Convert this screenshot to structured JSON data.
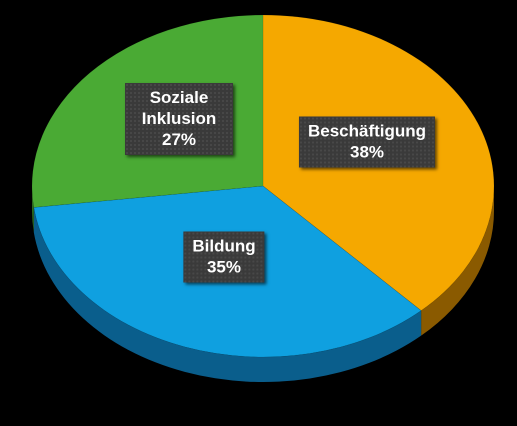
{
  "chart_data": {
    "type": "pie",
    "title": "",
    "slices": [
      {
        "label": "Beschäftigung",
        "value": 38,
        "value_label": "38%",
        "color": "#F5A800",
        "side_color": "#8A5A00"
      },
      {
        "label": "Bildung",
        "value": 35,
        "value_label": "35%",
        "color": "#0FA0E0",
        "side_color": "#0A5E8C"
      },
      {
        "label": "Soziale Inklusion",
        "value": 27,
        "value_label": "27%",
        "color": "#4AAA34",
        "side_color": "#2C6A1E"
      }
    ],
    "style": "3d",
    "background": "#000000",
    "legend": "none"
  }
}
